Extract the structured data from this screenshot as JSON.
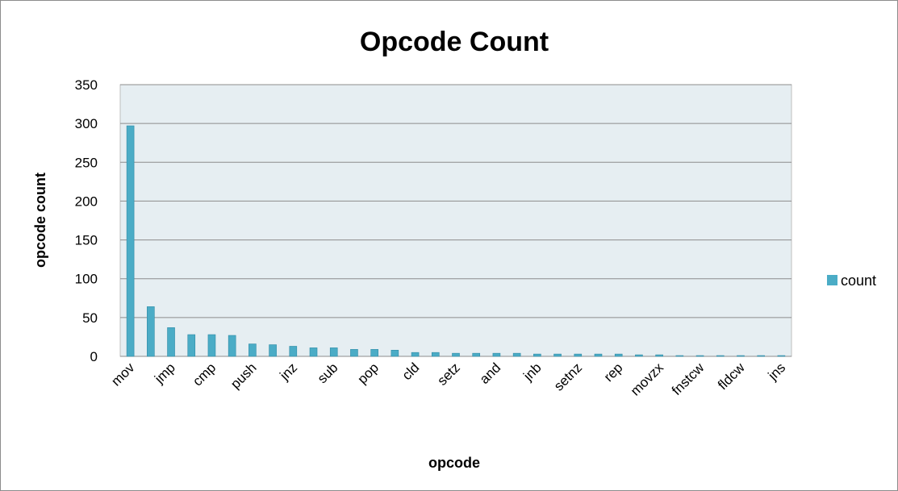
{
  "chart_data": {
    "type": "bar",
    "title": "Opcode Count",
    "xlabel": "opcode",
    "ylabel": "opcode count",
    "ylim": [
      0,
      350
    ],
    "yticks": [
      0,
      50,
      100,
      150,
      200,
      250,
      300,
      350
    ],
    "grid": true,
    "legend": "right",
    "categories": [
      "mov",
      "",
      "jmp",
      "",
      "cmp",
      "",
      "push",
      "",
      "jnz",
      "",
      "sub",
      "",
      "pop",
      "",
      "cld",
      "",
      "setz",
      "",
      "and",
      "",
      "jnb",
      "",
      "setnz",
      "",
      "rep",
      "",
      "movzx",
      "",
      "fnstcw",
      "",
      "fldcw",
      "",
      "jns"
    ],
    "series": [
      {
        "name": "count",
        "color": "#4bacc6",
        "values": [
          297,
          64,
          37,
          28,
          28,
          27,
          16,
          15,
          13,
          11,
          11,
          9,
          9,
          8,
          5,
          5,
          4,
          4,
          4,
          4,
          3,
          3,
          3,
          3,
          3,
          2,
          2,
          1,
          1,
          1,
          1,
          1,
          1
        ]
      }
    ]
  }
}
